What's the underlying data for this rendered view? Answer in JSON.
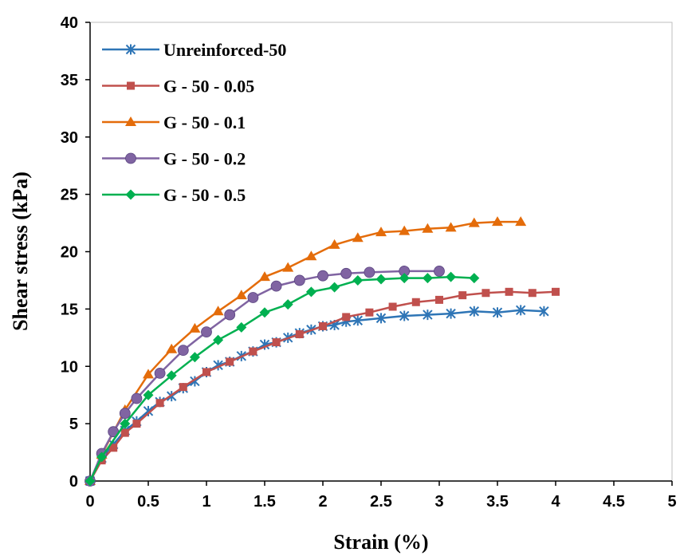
{
  "chart_data": {
    "type": "line",
    "title": "",
    "xlabel": "Strain (%)",
    "ylabel": "Shear stress (kPa)",
    "xlim": [
      0,
      5
    ],
    "ylim": [
      0,
      40
    ],
    "xticks": [
      "0",
      "0.5",
      "1",
      "1.5",
      "2",
      "2.5",
      "3",
      "3.5",
      "4",
      "4.5",
      "5"
    ],
    "yticks": [
      "0",
      "5",
      "10",
      "15",
      "20",
      "25",
      "30",
      "35",
      "40"
    ],
    "grid": false,
    "legend_position": "top-left",
    "series": [
      {
        "name": "Unreinforced-50",
        "color": "#2E75B6",
        "marker": "asterisk",
        "x": [
          0,
          0.1,
          0.2,
          0.3,
          0.4,
          0.5,
          0.6,
          0.7,
          0.8,
          0.9,
          1.0,
          1.1,
          1.2,
          1.3,
          1.4,
          1.5,
          1.6,
          1.7,
          1.8,
          1.9,
          2.0,
          2.1,
          2.2,
          2.3,
          2.5,
          2.7,
          2.9,
          3.1,
          3.3,
          3.5,
          3.7,
          3.9
        ],
        "y": [
          0,
          2.0,
          3.2,
          4.4,
          5.2,
          6.1,
          6.9,
          7.4,
          8.1,
          8.7,
          9.5,
          10.1,
          10.4,
          10.9,
          11.3,
          11.9,
          12.1,
          12.5,
          12.9,
          13.2,
          13.5,
          13.6,
          13.9,
          14.0,
          14.2,
          14.4,
          14.5,
          14.6,
          14.8,
          14.7,
          14.9,
          14.8
        ]
      },
      {
        "name": "G - 50 - 0.05",
        "color": "#C0504D",
        "marker": "square",
        "x": [
          0,
          0.1,
          0.2,
          0.3,
          0.4,
          0.6,
          0.8,
          1.0,
          1.2,
          1.4,
          1.6,
          1.8,
          2.0,
          2.2,
          2.4,
          2.6,
          2.8,
          3.0,
          3.2,
          3.4,
          3.6,
          3.8,
          4.0
        ],
        "y": [
          0,
          1.8,
          2.9,
          4.2,
          5.0,
          6.8,
          8.2,
          9.5,
          10.4,
          11.3,
          12.1,
          12.8,
          13.5,
          14.3,
          14.7,
          15.2,
          15.6,
          15.8,
          16.2,
          16.4,
          16.5,
          16.4,
          16.5
        ]
      },
      {
        "name": "G - 50 - 0.1",
        "color": "#E46C0A",
        "marker": "triangle",
        "x": [
          0,
          0.1,
          0.3,
          0.5,
          0.7,
          0.9,
          1.1,
          1.3,
          1.5,
          1.7,
          1.9,
          2.1,
          2.3,
          2.5,
          2.7,
          2.9,
          3.1,
          3.3,
          3.5,
          3.7
        ],
        "y": [
          0,
          2.3,
          6.2,
          9.3,
          11.5,
          13.3,
          14.8,
          16.2,
          17.8,
          18.6,
          19.6,
          20.6,
          21.2,
          21.7,
          21.8,
          22.0,
          22.1,
          22.5,
          22.6,
          22.6
        ]
      },
      {
        "name": "G - 50 - 0.2",
        "color": "#8064A2",
        "marker": "circle",
        "x": [
          0,
          0.1,
          0.2,
          0.3,
          0.4,
          0.6,
          0.8,
          1.0,
          1.2,
          1.4,
          1.6,
          1.8,
          2.0,
          2.2,
          2.4,
          2.7,
          3.0
        ],
        "y": [
          0,
          2.4,
          4.3,
          5.9,
          7.2,
          9.4,
          11.4,
          13.0,
          14.5,
          16.0,
          17.0,
          17.5,
          17.9,
          18.1,
          18.2,
          18.3,
          18.3
        ]
      },
      {
        "name": "G - 50 - 0.5",
        "color": "#00B050",
        "marker": "diamond",
        "x": [
          0,
          0.1,
          0.3,
          0.5,
          0.7,
          0.9,
          1.1,
          1.3,
          1.5,
          1.7,
          1.9,
          2.1,
          2.3,
          2.5,
          2.7,
          2.9,
          3.1,
          3.3
        ],
        "y": [
          0,
          2.1,
          5.0,
          7.5,
          9.2,
          10.8,
          12.3,
          13.4,
          14.7,
          15.4,
          16.5,
          16.9,
          17.5,
          17.6,
          17.7,
          17.7,
          17.8,
          17.7
        ]
      }
    ]
  }
}
